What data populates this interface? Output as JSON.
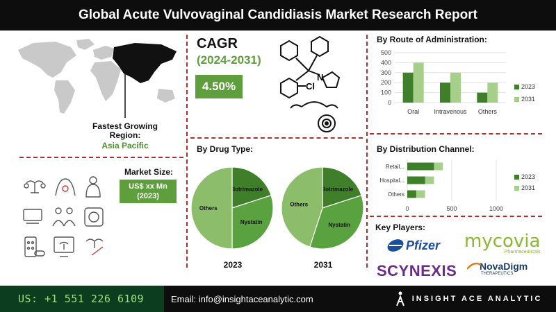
{
  "title": "Global Acute Vulvovaginal Candidiasis Market Research Report",
  "map": {
    "fastest_label": "Fastest Growing Region:",
    "region": "Asia Pacific"
  },
  "market_size": {
    "label": "Market Size:",
    "value_line1": "US$ xx Mn",
    "value_line2": "(2023)"
  },
  "cagr": {
    "label": "CAGR",
    "period": "(2024-2031)",
    "value": "4.50%"
  },
  "molecule": {
    "atom_n": "N",
    "atom_cl": "Cl"
  },
  "colors": {
    "dark_green": "#3f7f2a",
    "mid_green": "#5e9e3c",
    "light_green": "#a6cf8a",
    "pie_others": "#8bbd6a",
    "pie_clot": "#3f7f2a",
    "pie_nyst": "#5aa13f",
    "accent_red": "#b03030",
    "footer_green": "#0b3d1e"
  },
  "key_players": {
    "title": "Key Players:",
    "pfizer": "Pfizer",
    "mycovia": "mycovia",
    "mycovia_sub": "Pharmaceuticals",
    "scynexis": "SCYNEXIS",
    "novadigm": "NovaDigm",
    "novadigm_sub": "THERAPEUTICS"
  },
  "footer": {
    "phone": "US: +1 551 226 6109",
    "email": "Email: info@insightaceanalytic.com",
    "brand": "INSIGHT ACE ANALYTIC"
  },
  "chart_data": [
    {
      "type": "bar",
      "title": "By Route of Administration:",
      "categories": [
        "Oral",
        "Intravenous",
        "Others"
      ],
      "series": [
        {
          "name": "2023",
          "values": [
            300,
            200,
            100
          ]
        },
        {
          "name": "2031",
          "values": [
            400,
            300,
            200
          ]
        }
      ],
      "ylim": [
        0,
        500
      ],
      "yticks": [
        0,
        100,
        200,
        300,
        400,
        500
      ],
      "legend": "right"
    },
    {
      "type": "bar",
      "orientation": "horizontal",
      "title": "By Distribution Channel:",
      "categories": [
        "Retail...",
        "Hospital...",
        "Others"
      ],
      "series": [
        {
          "name": "2023",
          "values": [
            300,
            200,
            100
          ]
        },
        {
          "name": "2031",
          "values": [
            400,
            300,
            200
          ]
        }
      ],
      "xlim": [
        0,
        1000
      ],
      "xticks": [
        0,
        500,
        1000
      ],
      "legend": "right"
    },
    {
      "type": "pie",
      "title": "By Drug Type:",
      "label": "2023",
      "slices": [
        {
          "name": "Clotrimazole",
          "value": 20
        },
        {
          "name": "Nystatin",
          "value": 30
        },
        {
          "name": "Others",
          "value": 50
        }
      ]
    },
    {
      "type": "pie",
      "label": "2031",
      "slices": [
        {
          "name": "Clotrimazole",
          "value": 20
        },
        {
          "name": "Nystatin",
          "value": 35
        },
        {
          "name": "Others",
          "value": 45
        }
      ]
    }
  ]
}
